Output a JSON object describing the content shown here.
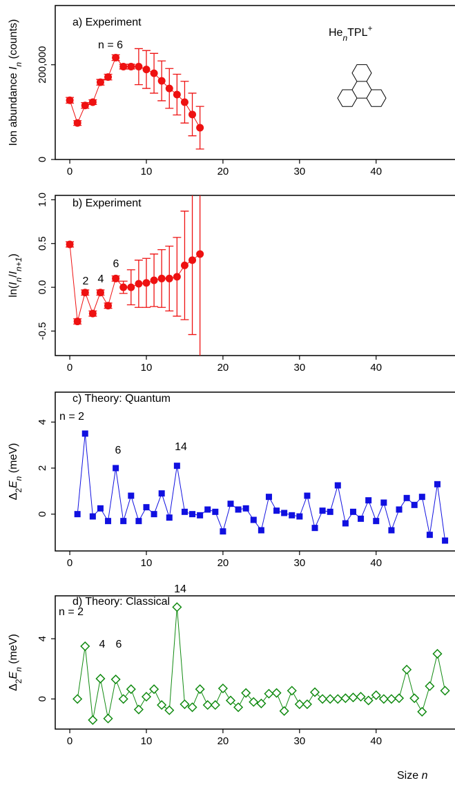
{
  "chart_data": [
    {
      "type": "line",
      "title": "a) Experiment",
      "marker": "circle",
      "color": "#ee1111",
      "ylabel": [
        "Ion abundance ",
        "I",
        "n",
        " (counts)"
      ],
      "inset_label": [
        "He",
        "n",
        "TPL",
        "+"
      ],
      "annotations": [
        "n = 6"
      ],
      "x": [
        0,
        1,
        2,
        3,
        4,
        5,
        6,
        7,
        8,
        9,
        10,
        11,
        12,
        13,
        14,
        15,
        16,
        17
      ],
      "values": [
        125000,
        77000,
        114000,
        121000,
        163000,
        174000,
        215000,
        196000,
        196000,
        196000,
        190000,
        182000,
        166000,
        150000,
        137000,
        121000,
        95000,
        67000
      ],
      "errors": [
        6000,
        5000,
        6000,
        5000,
        6000,
        6000,
        6000,
        5000,
        5000,
        38000,
        40000,
        42000,
        42000,
        42000,
        43000,
        44000,
        45000,
        45000
      ],
      "xlim": [
        -1.9,
        50.3
      ],
      "xticks": [
        0,
        10,
        20,
        30,
        40
      ],
      "ylim": [
        0,
        325000
      ],
      "yticks": [
        0,
        {
          "value": 200000,
          "label": "200,000"
        }
      ]
    },
    {
      "type": "line",
      "title": "b) Experiment",
      "marker": "circle",
      "color": "#ee1111",
      "ylabel": [
        "ln(",
        "I",
        "n",
        "/",
        "I",
        "n+1",
        ")"
      ],
      "annotations": [
        "2",
        "4",
        "6"
      ],
      "x": [
        0,
        1,
        2,
        3,
        4,
        5,
        6,
        7,
        8,
        9,
        10,
        11,
        12,
        13,
        14,
        15,
        16,
        17
      ],
      "values": [
        0.49,
        -0.39,
        -0.06,
        -0.3,
        -0.06,
        -0.21,
        0.1,
        0.0,
        0.0,
        0.04,
        0.05,
        0.08,
        0.1,
        0.1,
        0.12,
        0.25,
        0.31,
        0.38
      ],
      "errors": [
        0.03,
        0.03,
        0.03,
        0.03,
        0.03,
        0.03,
        0.03,
        0.07,
        0.2,
        0.27,
        0.28,
        0.3,
        0.33,
        0.37,
        0.45,
        0.62,
        0.85,
        1.2
      ],
      "xlim": [
        -1.9,
        50.3
      ],
      "xticks": [
        0,
        10,
        20,
        30,
        40
      ],
      "ylim": [
        -0.78,
        1.05
      ],
      "yticks": [
        -0.5,
        {
          "value": 0,
          "label": "0.0"
        },
        0.5,
        {
          "value": 1,
          "label": "1.0"
        }
      ]
    },
    {
      "type": "line",
      "title": "c) Theory: Quantum",
      "marker": "square",
      "color": "#1010e0",
      "ylabel": [
        "Δ",
        "2",
        "E",
        "n",
        " (meV)"
      ],
      "annotations": [
        "n = 2",
        "6",
        "14"
      ],
      "x": [
        1,
        2,
        3,
        4,
        5,
        6,
        7,
        8,
        9,
        10,
        11,
        12,
        13,
        14,
        15,
        16,
        17,
        18,
        19,
        20,
        21,
        22,
        23,
        24,
        25,
        26,
        27,
        28,
        29,
        30,
        31,
        32,
        33,
        34,
        35,
        36,
        37,
        38,
        39,
        40,
        41,
        42,
        43,
        44,
        45,
        46,
        47,
        48,
        49
      ],
      "values": [
        0.0,
        3.5,
        -0.1,
        0.25,
        -0.3,
        2.0,
        -0.3,
        0.8,
        -0.3,
        0.3,
        0.0,
        0.9,
        -0.15,
        2.1,
        0.1,
        0.0,
        -0.05,
        0.2,
        0.1,
        -0.75,
        0.45,
        0.2,
        0.25,
        -0.25,
        -0.7,
        0.75,
        0.15,
        0.05,
        -0.05,
        -0.1,
        0.8,
        -0.6,
        0.15,
        0.1,
        1.25,
        -0.4,
        0.1,
        -0.2,
        0.6,
        -0.3,
        0.5,
        -0.7,
        0.2,
        0.7,
        0.4,
        0.75,
        -0.9,
        1.3,
        -1.15
      ],
      "xlim": [
        -1.9,
        50.3
      ],
      "xticks": [
        0,
        10,
        20,
        30,
        40
      ],
      "ylim": [
        -1.6,
        5.3
      ],
      "yticks": [
        0,
        2,
        4
      ]
    },
    {
      "type": "line",
      "title": "d) Theory: Classical",
      "marker": "diamond",
      "color": "#108a10",
      "ylabel": [
        "Δ",
        "2",
        "E",
        "n",
        " (meV)"
      ],
      "xlabel": [
        "Size ",
        "n"
      ],
      "annotations": [
        "n = 2",
        "4",
        "6",
        "14"
      ],
      "x": [
        1,
        2,
        3,
        4,
        5,
        6,
        7,
        8,
        9,
        10,
        11,
        12,
        13,
        14,
        15,
        16,
        17,
        18,
        19,
        20,
        21,
        22,
        23,
        24,
        25,
        26,
        27,
        28,
        29,
        30,
        31,
        32,
        33,
        34,
        35,
        36,
        37,
        38,
        39,
        40,
        41,
        42,
        43,
        44,
        45,
        46,
        47,
        48,
        49
      ],
      "values": [
        0.0,
        3.5,
        -1.4,
        1.35,
        -1.3,
        1.3,
        0.0,
        0.65,
        -0.7,
        0.15,
        0.65,
        -0.4,
        -0.75,
        6.1,
        -0.35,
        -0.55,
        0.65,
        -0.4,
        -0.4,
        0.7,
        -0.1,
        -0.55,
        0.4,
        -0.2,
        -0.3,
        0.35,
        0.4,
        -0.8,
        0.55,
        -0.35,
        -0.35,
        0.45,
        0.0,
        0.0,
        0.0,
        0.05,
        0.1,
        0.15,
        -0.1,
        0.25,
        0.0,
        0.0,
        0.05,
        1.95,
        0.05,
        -0.85,
        0.85,
        3.0,
        0.55
      ],
      "xlim": [
        -1.9,
        50.3
      ],
      "xticks": [
        0,
        10,
        20,
        30,
        40
      ],
      "ylim": [
        -2.0,
        6.85
      ],
      "yticks": [
        0,
        4
      ]
    }
  ]
}
